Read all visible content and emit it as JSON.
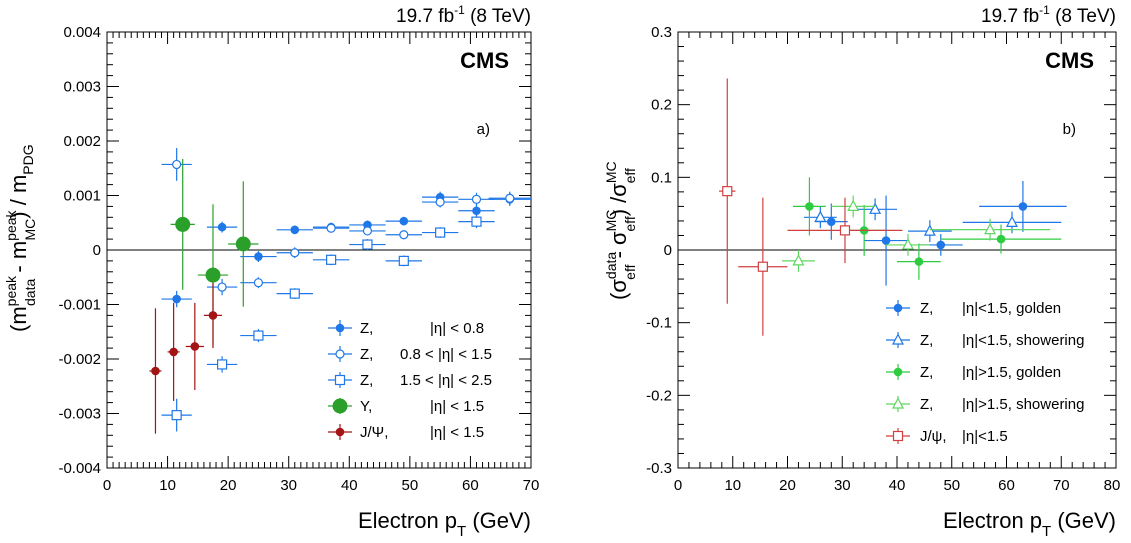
{
  "chart_data": [
    {
      "type": "scatter",
      "panel_label": "a)",
      "experiment": "CMS",
      "lumi_label": "19.7 fb",
      "lumi_sup": "-1",
      "lumi_energy": " (8 TeV)",
      "xlabel": "Electron p",
      "xlabel_sub": "T",
      "xlabel_unit": " (GeV)",
      "ylabel_text": "(m^peak_data - m^peak_MC) / m_PDG",
      "xlim": [
        0,
        70
      ],
      "ylim": [
        -0.004,
        0.004
      ],
      "x_ticks": [
        "0",
        "10",
        "20",
        "30",
        "40",
        "50",
        "60",
        "70"
      ],
      "y_ticks": [
        "-0.004",
        "-0.003",
        "-0.002",
        "-0.001",
        "0",
        "0.001",
        "0.002",
        "0.003",
        "0.004"
      ],
      "legend_position": "bottom-right",
      "series": [
        {
          "name": "Z,",
          "cond": "|η| < 0.8",
          "color": "#1f77e8",
          "marker": "circle-filled",
          "points": [
            {
              "x": 11.5,
              "xerr": 2.5,
              "y": -0.0009,
              "yerr": 0.00015
            },
            {
              "x": 19,
              "xerr": 2.5,
              "y": 0.00042,
              "yerr": 0.0001
            },
            {
              "x": 25,
              "xerr": 3,
              "y": -0.00012,
              "yerr": 0.0001
            },
            {
              "x": 31,
              "xerr": 3,
              "y": 0.00037,
              "yerr": 8e-05
            },
            {
              "x": 37,
              "xerr": 3,
              "y": 0.00042,
              "yerr": 8e-05
            },
            {
              "x": 43,
              "xerr": 3,
              "y": 0.00046,
              "yerr": 8e-05
            },
            {
              "x": 49,
              "xerr": 3,
              "y": 0.00053,
              "yerr": 8e-05
            },
            {
              "x": 55,
              "xerr": 3,
              "y": 0.00097,
              "yerr": 0.0001
            },
            {
              "x": 61,
              "xerr": 3,
              "y": 0.00072,
              "yerr": 0.00012
            },
            {
              "x": 66.5,
              "xerr": 3.5,
              "y": 0.00093,
              "yerr": 0.00012
            }
          ]
        },
        {
          "name": "Z,",
          "cond": "0.8 < |η| < 1.5",
          "color": "#1f77e8",
          "marker": "circle-open",
          "points": [
            {
              "x": 11.5,
              "xerr": 2.5,
              "y": 0.00157,
              "yerr": 0.0003
            },
            {
              "x": 19,
              "xerr": 2.5,
              "y": -0.00068,
              "yerr": 0.00015
            },
            {
              "x": 25,
              "xerr": 3,
              "y": -0.0006,
              "yerr": 0.0001
            },
            {
              "x": 31,
              "xerr": 3,
              "y": -5e-05,
              "yerr": 0.0001
            },
            {
              "x": 37,
              "xerr": 3,
              "y": 0.0004,
              "yerr": 8e-05
            },
            {
              "x": 43,
              "xerr": 3,
              "y": 0.00035,
              "yerr": 8e-05
            },
            {
              "x": 49,
              "xerr": 3,
              "y": 0.00028,
              "yerr": 8e-05
            },
            {
              "x": 55,
              "xerr": 3,
              "y": 0.00088,
              "yerr": 0.0001
            },
            {
              "x": 61,
              "xerr": 3,
              "y": 0.00093,
              "yerr": 0.00012
            },
            {
              "x": 66.5,
              "xerr": 3.5,
              "y": 0.00095,
              "yerr": 0.00012
            }
          ]
        },
        {
          "name": "Z,",
          "cond": "1.5 < |η| < 2.5",
          "color": "#1f77e8",
          "marker": "square-open",
          "points": [
            {
              "x": 11.5,
              "xerr": 2.5,
              "y": -0.00303,
              "yerr": 0.0003
            },
            {
              "x": 19,
              "xerr": 2.5,
              "y": -0.0021,
              "yerr": 0.00015
            },
            {
              "x": 25,
              "xerr": 3,
              "y": -0.00157,
              "yerr": 0.00012
            },
            {
              "x": 31,
              "xerr": 3,
              "y": -0.0008,
              "yerr": 0.0001
            },
            {
              "x": 37,
              "xerr": 3,
              "y": -0.00018,
              "yerr": 0.0001
            },
            {
              "x": 43,
              "xerr": 3,
              "y": 0.0001,
              "yerr": 0.0001
            },
            {
              "x": 49,
              "xerr": 3,
              "y": -0.0002,
              "yerr": 0.0001
            },
            {
              "x": 55,
              "xerr": 3,
              "y": 0.00032,
              "yerr": 0.0001
            },
            {
              "x": 61,
              "xerr": 3,
              "y": 0.00052,
              "yerr": 0.00012
            }
          ]
        },
        {
          "name": "Υ,",
          "cond": "|η| < 1.5",
          "color": "#2aa02a",
          "marker": "circle-filled-large",
          "points": [
            {
              "x": 12.5,
              "xerr": 2,
              "y": 0.00047,
              "yerr": 0.0012
            },
            {
              "x": 17.5,
              "xerr": 2.5,
              "y": -0.00046,
              "yerr": 0.0013
            },
            {
              "x": 22.5,
              "xerr": 2.5,
              "y": 0.00011,
              "yerr": 0.00115
            }
          ]
        },
        {
          "name": "J/Ψ,",
          "cond": "|η| < 1.5",
          "color": "#a31414",
          "marker": "circle-filled",
          "points": [
            {
              "x": 8,
              "xerr": 1,
              "y": -0.00222,
              "yerr": 0.00115
            },
            {
              "x": 11,
              "xerr": 1,
              "y": -0.00187,
              "yerr": 0.0009
            },
            {
              "x": 14.5,
              "xerr": 1.5,
              "y": -0.00177,
              "yerr": 0.0008
            },
            {
              "x": 17.5,
              "xerr": 1.5,
              "y": -0.0012,
              "yerr": 0.0006
            }
          ]
        }
      ]
    },
    {
      "type": "scatter",
      "panel_label": "b)",
      "experiment": "CMS",
      "lumi_label": "19.7 fb",
      "lumi_sup": "-1",
      "lumi_energy": " (8 TeV)",
      "xlabel": "Electron p",
      "xlabel_sub": "T",
      "xlabel_unit": " (GeV)",
      "ylabel_text": "(σ^data_eff - σ^MC_eff) / σ^MC_eff",
      "xlim": [
        0,
        80
      ],
      "ylim": [
        -0.3,
        0.3
      ],
      "x_ticks": [
        "0",
        "10",
        "20",
        "30",
        "40",
        "50",
        "60",
        "70",
        "80"
      ],
      "y_ticks": [
        "-0.3",
        "-0.2",
        "-0.1",
        "0",
        "0.1",
        "0.2",
        "0.3"
      ],
      "legend_position": "bottom-right",
      "series": [
        {
          "name": "Z,",
          "cond": "|η|<1.5, golden",
          "color": "#1f77e8",
          "marker": "circle-filled",
          "points": [
            {
              "x": 28,
              "xerr": 3,
              "y": 0.039,
              "yerr": 0.025
            },
            {
              "x": 38,
              "xerr": 4,
              "y": 0.013,
              "yerr": 0.062
            },
            {
              "x": 48,
              "xerr": 4,
              "y": 0.007,
              "yerr": 0.015
            },
            {
              "x": 63,
              "xerr": 8,
              "y": 0.06,
              "yerr": 0.035
            }
          ]
        },
        {
          "name": "Z,",
          "cond": "|η|<1.5, showering",
          "color": "#1f77e8",
          "marker": "triangle-open",
          "points": [
            {
              "x": 26,
              "xerr": 3,
              "y": 0.045,
              "yerr": 0.015
            },
            {
              "x": 36,
              "xerr": 4,
              "y": 0.056,
              "yerr": 0.015
            },
            {
              "x": 46,
              "xerr": 4,
              "y": 0.026,
              "yerr": 0.015
            },
            {
              "x": 61,
              "xerr": 9,
              "y": 0.038,
              "yerr": 0.015
            }
          ]
        },
        {
          "name": "Z,",
          "cond": "|η|>1.5, golden",
          "color": "#2ecc40",
          "marker": "circle-filled",
          "points": [
            {
              "x": 24,
              "xerr": 3,
              "y": 0.06,
              "yerr": 0.04
            },
            {
              "x": 34,
              "xerr": 4,
              "y": 0.027,
              "yerr": 0.035
            },
            {
              "x": 44,
              "xerr": 4,
              "y": -0.016,
              "yerr": 0.025
            },
            {
              "x": 59,
              "xerr": 11,
              "y": 0.015,
              "yerr": 0.02
            }
          ]
        },
        {
          "name": "Z,",
          "cond": "|η|>1.5, showering",
          "color": "#5fd65f",
          "marker": "triangle-open",
          "points": [
            {
              "x": 22,
              "xerr": 3,
              "y": -0.015,
              "yerr": 0.015
            },
            {
              "x": 32,
              "xerr": 4,
              "y": 0.06,
              "yerr": 0.015
            },
            {
              "x": 42,
              "xerr": 4,
              "y": 0.007,
              "yerr": 0.015
            },
            {
              "x": 57,
              "xerr": 11,
              "y": 0.028,
              "yerr": 0.015
            }
          ]
        },
        {
          "name": "J/ψ,",
          "cond": "|η|<1.5",
          "color": "#d04040",
          "marker": "square-open",
          "points": [
            {
              "x": 9,
              "xerr": 1.5,
              "y": 0.081,
              "yerr": 0.155
            },
            {
              "x": 15.5,
              "xerr": 4.5,
              "y": -0.023,
              "yerr": 0.095
            },
            {
              "x": 30.5,
              "xerr": 10.5,
              "y": 0.027,
              "yerr": 0.045
            }
          ]
        }
      ]
    }
  ]
}
